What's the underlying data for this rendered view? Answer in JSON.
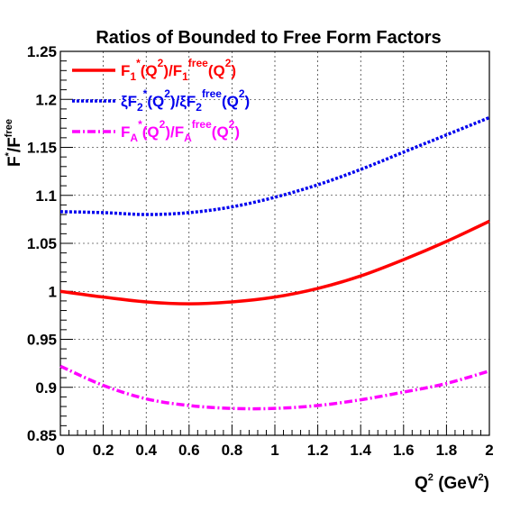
{
  "chart_data": {
    "type": "line",
    "title": "Ratios of Bounded to Free Form Factors",
    "xlabel": {
      "base": "Q",
      "exp": "2",
      "unit_open": " (GeV",
      "unit_exp": "2",
      "unit_close": ")"
    },
    "ylabel": {
      "base": "F",
      "exp": "*",
      "slash": "/F",
      "exp2": "free"
    },
    "xlim": [
      0,
      2
    ],
    "ylim": [
      0.85,
      1.25
    ],
    "x_ticks": [
      "0",
      "0.2",
      "0.4",
      "0.6",
      "0.8",
      "1",
      "1.2",
      "1.4",
      "1.6",
      "1.8",
      "2"
    ],
    "y_ticks": [
      "0.85",
      "0.9",
      "0.95",
      "1",
      "1.05",
      "1.1",
      "1.15",
      "1.2",
      "1.25"
    ],
    "grid": true,
    "legend_placement": "top-left",
    "x": [
      0,
      0.2,
      0.4,
      0.6,
      0.8,
      1.0,
      1.2,
      1.4,
      1.6,
      1.8,
      2.0
    ],
    "series": [
      {
        "legend_text": [
          [
            "F",
            ""
          ],
          [
            "1",
            "sub"
          ],
          [
            "*",
            "sup"
          ],
          [
            "(Q",
            ""
          ],
          [
            "2",
            "sup"
          ],
          [
            ")/F",
            ""
          ],
          [
            "1",
            "sub"
          ],
          [
            "free",
            "sup"
          ],
          [
            "(Q",
            ""
          ],
          [
            "2",
            "sup"
          ],
          [
            ")",
            ""
          ]
        ],
        "color": "#ff0000",
        "style": "solid",
        "values": [
          1.0,
          0.994,
          0.989,
          0.987,
          0.989,
          0.994,
          1.003,
          1.016,
          1.033,
          1.052,
          1.073
        ]
      },
      {
        "legend_text": [
          [
            "ξF",
            ""
          ],
          [
            "2",
            "sub"
          ],
          [
            "*",
            "sup"
          ],
          [
            "(Q",
            ""
          ],
          [
            "2",
            "sup"
          ],
          [
            ")/ξF",
            ""
          ],
          [
            "2",
            "sub"
          ],
          [
            "free",
            "sup"
          ],
          [
            "(Q",
            ""
          ],
          [
            "2",
            "sup"
          ],
          [
            ")",
            ""
          ]
        ],
        "color": "#0000ee",
        "style": "dotted",
        "values": [
          1.083,
          1.082,
          1.08,
          1.082,
          1.088,
          1.098,
          1.111,
          1.127,
          1.145,
          1.163,
          1.181
        ]
      },
      {
        "legend_text": [
          [
            "F",
            ""
          ],
          [
            "A",
            "sub"
          ],
          [
            "*",
            "sup"
          ],
          [
            "(Q",
            ""
          ],
          [
            "2",
            "sup"
          ],
          [
            ")/F",
            ""
          ],
          [
            "A",
            "sub"
          ],
          [
            "free",
            "sup"
          ],
          [
            "(Q",
            ""
          ],
          [
            "2",
            "sup"
          ],
          [
            ")",
            ""
          ]
        ],
        "color": "#ff00ff",
        "style": "dashdot",
        "values": [
          0.922,
          0.902,
          0.888,
          0.881,
          0.878,
          0.878,
          0.881,
          0.887,
          0.895,
          0.904,
          0.917
        ]
      }
    ]
  }
}
